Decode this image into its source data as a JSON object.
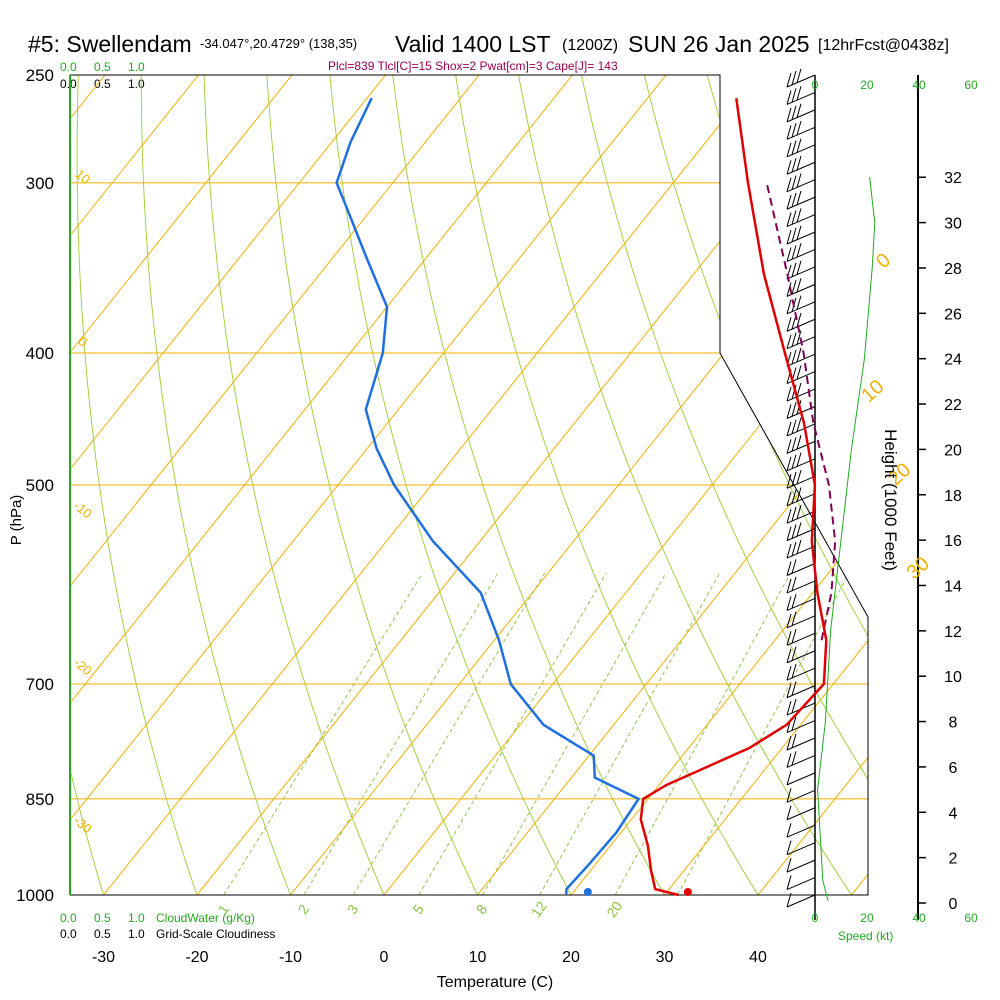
{
  "header": {
    "station": "#5: Swellendam",
    "coords": "-34.047°,20.4729° (138,35)",
    "valid": "Valid 1400 LST",
    "zulu": "(1200Z)",
    "date": "SUN 26 Jan 2025",
    "fcst": "[12hrFcst@0438z]",
    "params": "Plcl=839 Tlcl[C]=15 Shox=2 Pwat[cm]=3 Cape[J]= 143"
  },
  "colors": {
    "temperature": "#e00000",
    "dewpoint": "#1e6fe0",
    "parcel": "#800050",
    "isotherm": "#f0b000",
    "dry_adiabat": "#9acd32",
    "mixing_ratio": "#8cc040",
    "green_text": "#22aa22",
    "params_text": "#990055"
  },
  "chart_data": {
    "type": "line",
    "subtype": "skew-t log-p",
    "xlabel": "Temperature (C)",
    "ylabel": "P (hPa)",
    "right_label": "Height (1000 Feet)",
    "speed_label": "Speed (kt)",
    "x_ticks": [
      "-30",
      "-20",
      "-10",
      "0",
      "10",
      "20",
      "30",
      "40"
    ],
    "x_tick_values": [
      -30,
      -20,
      -10,
      0,
      10,
      20,
      30,
      40
    ],
    "pressure_ticks": [
      "250",
      "300",
      "400",
      "500",
      "700",
      "850",
      "1000"
    ],
    "pressure_values": [
      250,
      300,
      400,
      500,
      700,
      850,
      1000
    ],
    "height_ticks": [
      "0",
      "2",
      "4",
      "6",
      "8",
      "10",
      "12",
      "14",
      "16",
      "18",
      "20",
      "22",
      "24",
      "26",
      "28",
      "30",
      "32"
    ],
    "height_values": [
      0,
      2,
      4,
      6,
      8,
      10,
      12,
      14,
      16,
      18,
      20,
      22,
      24,
      26,
      28,
      30,
      32
    ],
    "speed_ticks": [
      "0",
      "20",
      "40",
      "60"
    ],
    "speed_tick_values": [
      0,
      20,
      40,
      60
    ],
    "top_scale": [
      "0.0",
      "0.5",
      "1.0"
    ],
    "bottom_cloudwater_ticks": [
      "0.0",
      "0.5",
      "1.0"
    ],
    "bottom_cloudwater_label": "CloudWater (g/Kg)",
    "bottom_cloudiness_ticks": [
      "0.0",
      "0.5",
      "1.0"
    ],
    "bottom_cloudiness_label": "Grid-Scale Cloudiness",
    "isotherm_labels": [
      {
        "text": "0",
        "t": 0,
        "p": 345
      },
      {
        "text": "10",
        "t": 10,
        "p": 430
      },
      {
        "text": "20",
        "t": 20,
        "p": 495
      },
      {
        "text": "30",
        "t": 30,
        "p": 580
      }
    ],
    "dry_adiabat_labels": [
      {
        "text": "10",
        "x": 80,
        "y": 180
      },
      {
        "text": "0",
        "x": 80,
        "y": 345
      },
      {
        "text": "-10",
        "x": 80,
        "y": 513
      },
      {
        "text": "-20",
        "x": 80,
        "y": 670
      },
      {
        "text": "-30",
        "x": 80,
        "y": 828
      }
    ],
    "mixing_ratio_labels": [
      "1",
      "2",
      "3",
      "5",
      "8",
      "12",
      "20"
    ],
    "mixing_ratio_values": [
      1,
      2,
      3,
      5,
      8,
      12,
      20
    ],
    "series": [
      {
        "name": "Temperature",
        "points": [
          {
            "p": 1000,
            "t": 31.5
          },
          {
            "p": 990,
            "t": 28.5
          },
          {
            "p": 960,
            "t": 26.5
          },
          {
            "p": 920,
            "t": 24.0
          },
          {
            "p": 880,
            "t": 21.0
          },
          {
            "p": 850,
            "t": 19.5
          },
          {
            "p": 830,
            "t": 20.8
          },
          {
            "p": 815,
            "t": 22.5
          },
          {
            "p": 780,
            "t": 26.5
          },
          {
            "p": 750,
            "t": 28.5
          },
          {
            "p": 700,
            "t": 29.0
          },
          {
            "p": 650,
            "t": 25.5
          },
          {
            "p": 600,
            "t": 20.5
          },
          {
            "p": 550,
            "t": 15.5
          },
          {
            "p": 500,
            "t": 11.0
          },
          {
            "p": 450,
            "t": 4.5
          },
          {
            "p": 400,
            "t": -3.5
          },
          {
            "p": 350,
            "t": -12.5
          },
          {
            "p": 300,
            "t": -22.0
          },
          {
            "p": 260,
            "t": -30.5
          }
        ]
      },
      {
        "name": "Dewpoint",
        "points": [
          {
            "p": 1000,
            "t": 19.5
          },
          {
            "p": 990,
            "t": 19.0
          },
          {
            "p": 950,
            "t": 19.3
          },
          {
            "p": 900,
            "t": 19.5
          },
          {
            "p": 850,
            "t": 19.0
          },
          {
            "p": 820,
            "t": 12.5
          },
          {
            "p": 790,
            "t": 10.5
          },
          {
            "p": 750,
            "t": 2.5
          },
          {
            "p": 700,
            "t": -4.5
          },
          {
            "p": 650,
            "t": -9.5
          },
          {
            "p": 600,
            "t": -15.5
          },
          {
            "p": 550,
            "t": -25.0
          },
          {
            "p": 500,
            "t": -34.0
          },
          {
            "p": 470,
            "t": -39.0
          },
          {
            "p": 440,
            "t": -43.5
          },
          {
            "p": 400,
            "t": -46.5
          },
          {
            "p": 370,
            "t": -50.0
          },
          {
            "p": 340,
            "t": -56.5
          },
          {
            "p": 310,
            "t": -63.5
          },
          {
            "p": 300,
            "t": -66.0
          },
          {
            "p": 280,
            "t": -68.0
          },
          {
            "p": 260,
            "t": -69.5
          }
        ]
      },
      {
        "name": "Parcel",
        "points": [
          {
            "p": 650,
            "t": 25.0
          },
          {
            "p": 600,
            "t": 22.0
          },
          {
            "p": 550,
            "t": 18.0
          },
          {
            "p": 500,
            "t": 12.5
          },
          {
            "p": 450,
            "t": 5.5
          },
          {
            "p": 400,
            "t": -1.5
          },
          {
            "p": 350,
            "t": -10.0
          },
          {
            "p": 300,
            "t": -20.0
          }
        ]
      }
    ],
    "surface_temperature": 32.5,
    "surface_dewpoint": 21.8,
    "height_profile_speed_kt": [
      {
        "h": 0.1,
        "v": 5
      },
      {
        "h": 1,
        "v": 3
      },
      {
        "h": 3,
        "v": 2
      },
      {
        "h": 5,
        "v": 1
      },
      {
        "h": 6,
        "v": 2
      },
      {
        "h": 8,
        "v": 4
      },
      {
        "h": 12,
        "v": 6
      },
      {
        "h": 16,
        "v": 10
      },
      {
        "h": 20,
        "v": 14
      },
      {
        "h": 24,
        "v": 19
      },
      {
        "h": 28,
        "v": 22
      },
      {
        "h": 30,
        "v": 23
      },
      {
        "h": 32,
        "v": 21
      }
    ],
    "wind_barb_count": 48
  }
}
